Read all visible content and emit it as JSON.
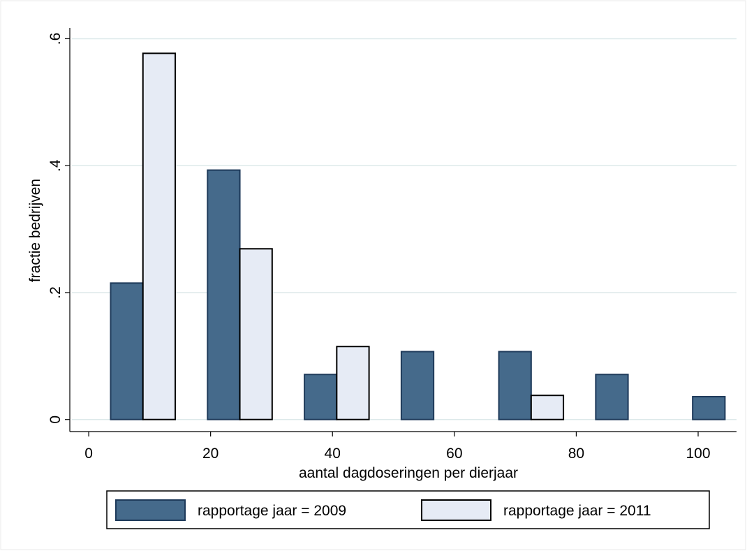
{
  "chart_data": {
    "type": "bar",
    "xlabel": "aantal dagdoseringen per dierjaar",
    "ylabel": "fractie bedrijven",
    "x": [
      8.9,
      24.8,
      40.7,
      56.6,
      72.6,
      88.5,
      104.4
    ],
    "series": [
      {
        "name": "rapportage jaar = 2009",
        "color": "#456a8b",
        "values": [
          0.215,
          0.393,
          0.071,
          0.107,
          0.107,
          0.071,
          0.036
        ]
      },
      {
        "name": "rapportage jaar = 2011",
        "color": "#e6ebf5",
        "values": [
          0.577,
          0.269,
          0.115,
          null,
          0.038,
          null,
          null
        ]
      }
    ],
    "xlim": [
      -3.1,
      106.3
    ],
    "ylim": [
      -0.019,
      0.617
    ],
    "xticks": [
      0,
      20,
      40,
      60,
      80,
      100
    ],
    "yticks": [
      {
        "value": 0,
        "label": "0"
      },
      {
        "value": 0.2,
        "label": ".2"
      },
      {
        "value": 0.4,
        "label": ".4"
      },
      {
        "value": 0.6,
        "label": ".6"
      }
    ],
    "grid": true,
    "legend": "bottom"
  }
}
